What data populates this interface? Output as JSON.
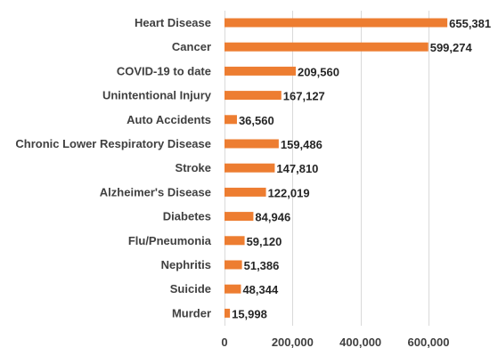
{
  "chart_data": {
    "type": "bar",
    "orientation": "horizontal",
    "categories": [
      "Heart Disease",
      "Cancer",
      "COVID-19 to date",
      "Unintentional Injury",
      "Auto Accidents",
      "Chronic Lower Respiratory Disease",
      "Stroke",
      "Alzheimer's Disease",
      "Diabetes",
      "Flu/Pneumonia",
      "Nephritis",
      "Suicide",
      "Murder"
    ],
    "values": [
      655381,
      599274,
      209560,
      167127,
      36560,
      159486,
      147810,
      122019,
      84946,
      59120,
      51386,
      48344,
      15998
    ],
    "value_labels": [
      "655,381",
      "599,274",
      "209,560",
      "167,127",
      "36,560",
      "159,486",
      "147,810",
      "122,019",
      "84,946",
      "59,120",
      "51,386",
      "48,344",
      "15,998"
    ],
    "xlim": [
      0,
      700000
    ],
    "xticks": [
      0,
      200000,
      400000,
      600000
    ],
    "xtick_labels": [
      "0",
      "200,000",
      "400,000",
      "600,000"
    ],
    "grid": true,
    "legend": "none",
    "bar_color": "#ED7D31",
    "title": "",
    "xlabel": "",
    "ylabel": ""
  }
}
